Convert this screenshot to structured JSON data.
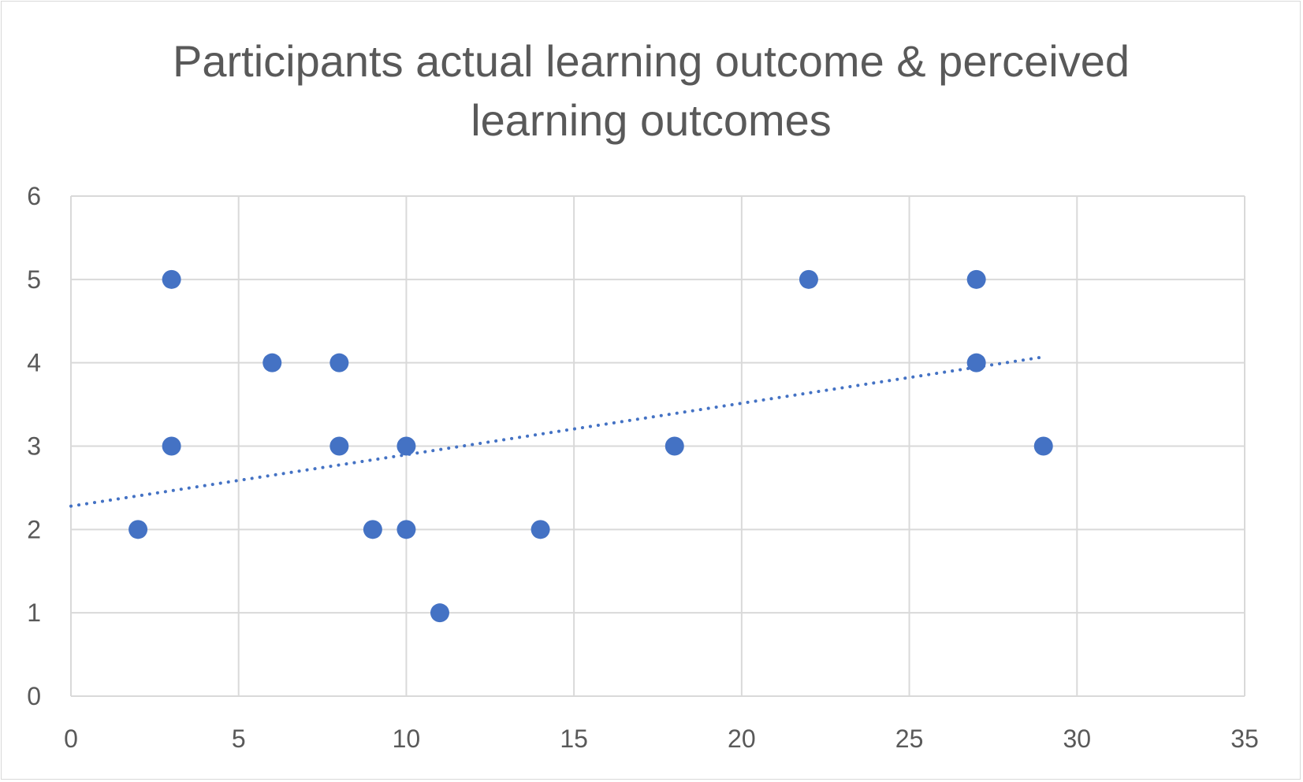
{
  "chart_data": {
    "type": "scatter",
    "title": "Participants actual learning outcome & perceived learning outcomes",
    "title_lines": [
      "Participants actual learning outcome & perceived",
      "learning outcomes"
    ],
    "xlabel": "",
    "ylabel": "",
    "xlim": [
      0,
      35
    ],
    "ylim": [
      0,
      6
    ],
    "x_ticks": [
      0,
      5,
      10,
      15,
      20,
      25,
      30,
      35
    ],
    "y_ticks": [
      0,
      1,
      2,
      3,
      4,
      5,
      6
    ],
    "grid": true,
    "legend": "none",
    "series": [
      {
        "color": "#4472c4",
        "points": [
          {
            "x": 2,
            "y": 2
          },
          {
            "x": 3,
            "y": 5
          },
          {
            "x": 3,
            "y": 3
          },
          {
            "x": 6,
            "y": 4
          },
          {
            "x": 8,
            "y": 4
          },
          {
            "x": 8,
            "y": 3
          },
          {
            "x": 9,
            "y": 2
          },
          {
            "x": 10,
            "y": 3
          },
          {
            "x": 10,
            "y": 2
          },
          {
            "x": 11,
            "y": 1
          },
          {
            "x": 14,
            "y": 2
          },
          {
            "x": 18,
            "y": 3
          },
          {
            "x": 22,
            "y": 5
          },
          {
            "x": 27,
            "y": 5
          },
          {
            "x": 27,
            "y": 4
          },
          {
            "x": 29,
            "y": 3
          }
        ]
      }
    ],
    "trendline": {
      "type": "linear",
      "style": "dotted",
      "color": "#4472c4",
      "from": {
        "x": 0,
        "y": 2.28
      },
      "to": {
        "x": 29,
        "y": 4.07
      }
    },
    "colors": {
      "gridline": "#d9d9d9",
      "text": "#595959",
      "marker": "#4472c4"
    }
  }
}
